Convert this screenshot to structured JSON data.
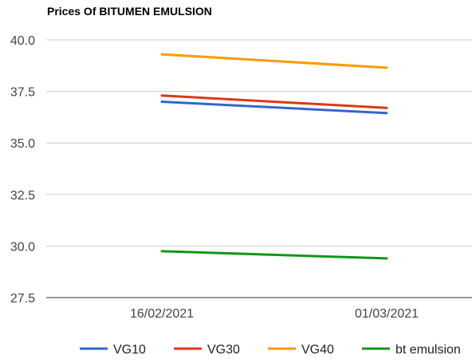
{
  "chart_data": {
    "type": "line",
    "title": "Prices Of BITUMEN EMULSION",
    "categories": [
      "16/02/2021",
      "01/03/2021"
    ],
    "yticks": [
      "27.5",
      "30.0",
      "32.5",
      "35.0",
      "37.5",
      "40.0"
    ],
    "ylim": [
      27.5,
      40.0
    ],
    "grid": true,
    "legend_position": "bottom",
    "series": [
      {
        "name": "VG10",
        "color": "#3366cc",
        "values": [
          37.0,
          36.45
        ]
      },
      {
        "name": "VG30",
        "color": "#dc3912",
        "values": [
          37.3,
          36.7
        ]
      },
      {
        "name": "VG40",
        "color": "#ff9900",
        "values": [
          39.3,
          38.65
        ]
      },
      {
        "name": "bt emulsion",
        "color": "#109618",
        "values": [
          29.75,
          29.4
        ]
      }
    ]
  }
}
